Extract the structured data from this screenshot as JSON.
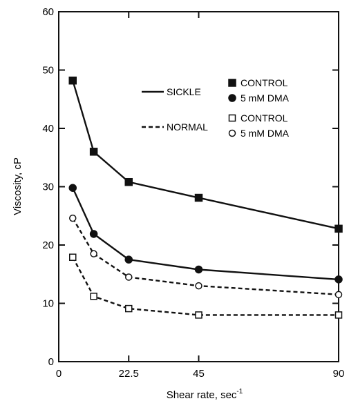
{
  "chart_data": {
    "type": "line",
    "xlabel": "Shear rate, sec",
    "xlabel_superscript": "-1",
    "ylabel": "Viscosity, cP",
    "xlim": [
      0,
      90
    ],
    "ylim": [
      0,
      60
    ],
    "xticks": [
      0,
      22.5,
      45,
      90
    ],
    "xtick_labels": [
      "0",
      "22.5",
      "45",
      "90"
    ],
    "yticks": [
      0,
      10,
      20,
      30,
      40,
      50,
      60
    ],
    "ytick_labels": [
      "0",
      "10",
      "20",
      "30",
      "40",
      "50",
      "60"
    ],
    "grid": false,
    "legend_placement": "top-right",
    "legend_groups": [
      {
        "label": "SICKLE",
        "line_style": "solid",
        "entries": [
          {
            "marker": "filled-square",
            "label": "CONTROL"
          },
          {
            "marker": "filled-circle",
            "label": "5 mM DMA"
          }
        ]
      },
      {
        "label": "NORMAL",
        "line_style": "dashed",
        "entries": [
          {
            "marker": "open-square",
            "label": "CONTROL"
          },
          {
            "marker": "open-circle",
            "label": "5 mM DMA"
          }
        ]
      }
    ],
    "series": [
      {
        "group": "SICKLE",
        "label": "CONTROL",
        "marker": "filled-square",
        "line_style": "solid",
        "x": [
          4.5,
          11.25,
          22.5,
          45,
          90
        ],
        "y": [
          48.2,
          36.0,
          30.8,
          28.1,
          22.8
        ]
      },
      {
        "group": "SICKLE",
        "label": "5 mM DMA",
        "marker": "filled-circle",
        "line_style": "solid",
        "x": [
          4.5,
          11.25,
          22.5,
          45,
          90
        ],
        "y": [
          29.8,
          21.9,
          17.5,
          15.8,
          14.1
        ]
      },
      {
        "group": "NORMAL",
        "label": "5 mM DMA",
        "marker": "open-circle",
        "line_style": "dashed",
        "x": [
          4.5,
          11.25,
          22.5,
          45,
          90
        ],
        "y": [
          24.6,
          18.5,
          14.5,
          13.0,
          11.5
        ]
      },
      {
        "group": "NORMAL",
        "label": "CONTROL",
        "marker": "open-square",
        "line_style": "dashed",
        "x": [
          4.5,
          11.25,
          22.5,
          45,
          90
        ],
        "y": [
          17.9,
          11.2,
          9.1,
          8.0,
          8.0
        ]
      }
    ],
    "colors": {
      "ink": "#111111",
      "background": "#ffffff"
    }
  }
}
